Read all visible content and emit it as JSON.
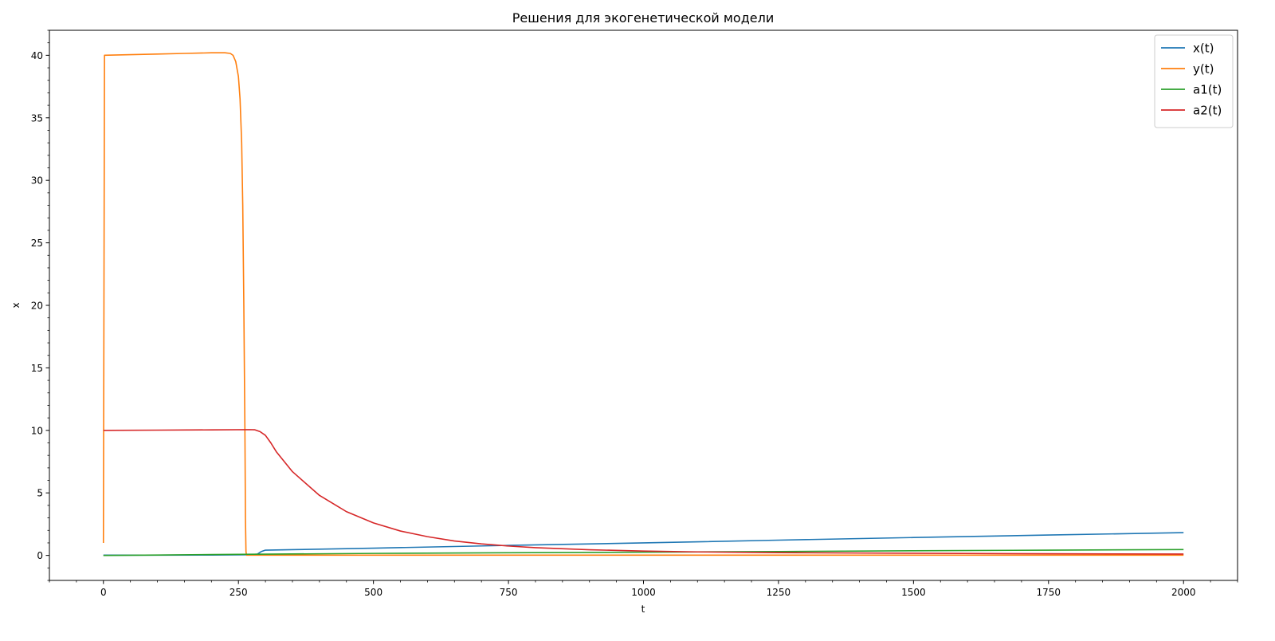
{
  "chart_data": {
    "type": "line",
    "title": "Решения для экогенетической модели",
    "xlabel": "t",
    "ylabel": "x",
    "xlim": [
      -100,
      2100
    ],
    "ylim": [
      -2,
      42
    ],
    "xticks": [
      0,
      250,
      500,
      750,
      1000,
      1250,
      1500,
      1750,
      2000
    ],
    "yticks": [
      0,
      5,
      10,
      15,
      20,
      25,
      30,
      35,
      40
    ],
    "x_minor_step": 50,
    "y_minor_step": 1,
    "grid": false,
    "legend_position": "top-right",
    "series": [
      {
        "name": "x(t)",
        "color": "#1f77b4",
        "points": [
          [
            0,
            0.02
          ],
          [
            100,
            0.02
          ],
          [
            200,
            0.03
          ],
          [
            270,
            0.05
          ],
          [
            285,
            0.1
          ],
          [
            292,
            0.3
          ],
          [
            300,
            0.42
          ],
          [
            350,
            0.46
          ],
          [
            500,
            0.58
          ],
          [
            750,
            0.8
          ],
          [
            1000,
            1.0
          ],
          [
            1250,
            1.22
          ],
          [
            1500,
            1.43
          ],
          [
            1750,
            1.63
          ],
          [
            2000,
            1.82
          ]
        ]
      },
      {
        "name": "y(t)",
        "color": "#ff7f0e",
        "points": [
          [
            0,
            1.0
          ],
          [
            2,
            40.0
          ],
          [
            50,
            40.05
          ],
          [
            100,
            40.1
          ],
          [
            150,
            40.15
          ],
          [
            200,
            40.2
          ],
          [
            225,
            40.2
          ],
          [
            235,
            40.15
          ],
          [
            240,
            40.0
          ],
          [
            245,
            39.5
          ],
          [
            250,
            38.3
          ],
          [
            253,
            36.5
          ],
          [
            256,
            33
          ],
          [
            258,
            28
          ],
          [
            260,
            20
          ],
          [
            262,
            10
          ],
          [
            263,
            3
          ],
          [
            264,
            0.3
          ],
          [
            265,
            0.02
          ],
          [
            300,
            0.02
          ],
          [
            1000,
            0.02
          ],
          [
            2000,
            0.02
          ]
        ]
      },
      {
        "name": "a1(t)",
        "color": "#2ca02c",
        "points": [
          [
            0,
            0.0
          ],
          [
            100,
            0.03
          ],
          [
            200,
            0.07
          ],
          [
            300,
            0.1
          ],
          [
            500,
            0.16
          ],
          [
            750,
            0.21
          ],
          [
            1000,
            0.26
          ],
          [
            1250,
            0.31
          ],
          [
            1500,
            0.37
          ],
          [
            1750,
            0.42
          ],
          [
            2000,
            0.47
          ]
        ]
      },
      {
        "name": "a2(t)",
        "color": "#d62728",
        "points": [
          [
            0,
            10.0
          ],
          [
            100,
            10.02
          ],
          [
            200,
            10.04
          ],
          [
            270,
            10.06
          ],
          [
            280,
            10.05
          ],
          [
            290,
            9.9
          ],
          [
            300,
            9.6
          ],
          [
            310,
            9.0
          ],
          [
            320,
            8.3
          ],
          [
            350,
            6.7
          ],
          [
            400,
            4.8
          ],
          [
            450,
            3.5
          ],
          [
            500,
            2.6
          ],
          [
            550,
            1.95
          ],
          [
            600,
            1.5
          ],
          [
            650,
            1.15
          ],
          [
            700,
            0.92
          ],
          [
            750,
            0.75
          ],
          [
            800,
            0.62
          ],
          [
            900,
            0.45
          ],
          [
            1000,
            0.35
          ],
          [
            1100,
            0.28
          ],
          [
            1250,
            0.22
          ],
          [
            1500,
            0.17
          ],
          [
            1750,
            0.13
          ],
          [
            2000,
            0.11
          ]
        ]
      }
    ]
  }
}
